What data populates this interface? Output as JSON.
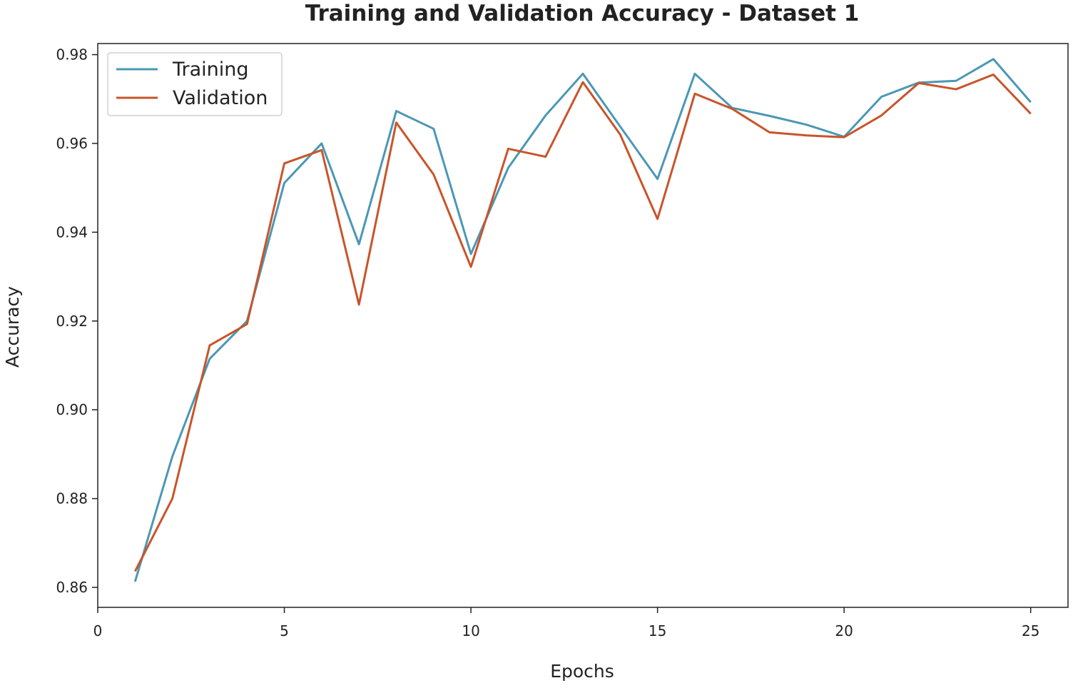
{
  "colors": {
    "training": "#4a98b4",
    "validation": "#c9542a",
    "axis": "#222222",
    "legend_border": "#d0d0d0"
  },
  "chart_data": {
    "type": "line",
    "title": "Training and Validation Accuracy - Dataset 1",
    "xlabel": "Epochs",
    "ylabel": "Accuracy",
    "xlim": [
      0,
      26
    ],
    "ylim": [
      0.8555,
      0.9825
    ],
    "xticks": [
      0,
      5,
      10,
      15,
      20,
      25
    ],
    "xtick_labels": [
      "0",
      "5",
      "10",
      "15",
      "20",
      "25"
    ],
    "yticks": [
      0.86,
      0.88,
      0.9,
      0.92,
      0.94,
      0.96,
      0.98
    ],
    "ytick_labels": [
      "0.86",
      "0.88",
      "0.90",
      "0.92",
      "0.94",
      "0.96",
      "0.98"
    ],
    "grid": false,
    "legend_position": "top-left",
    "x": [
      1,
      2,
      3,
      4,
      5,
      6,
      7,
      8,
      9,
      10,
      11,
      12,
      13,
      14,
      15,
      16,
      17,
      18,
      19,
      20,
      21,
      22,
      23,
      24,
      25
    ],
    "series": [
      {
        "name": "Training",
        "color": "#4a98b4",
        "values": [
          0.8613,
          0.8895,
          0.9115,
          0.92,
          0.9511,
          0.96,
          0.9373,
          0.9673,
          0.9633,
          0.9351,
          0.9545,
          0.9663,
          0.9757,
          0.9638,
          0.952,
          0.9757,
          0.968,
          0.9662,
          0.9642,
          0.9615,
          0.9705,
          0.9737,
          0.9741,
          0.979,
          0.9693
        ]
      },
      {
        "name": "Validation",
        "color": "#c9542a",
        "values": [
          0.8636,
          0.88,
          0.9145,
          0.9193,
          0.9555,
          0.9585,
          0.9237,
          0.9647,
          0.953,
          0.9322,
          0.9588,
          0.957,
          0.9738,
          0.962,
          0.943,
          0.9712,
          0.9678,
          0.9625,
          0.9618,
          0.9614,
          0.9663,
          0.9736,
          0.9722,
          0.9755,
          0.9667
        ]
      }
    ]
  }
}
